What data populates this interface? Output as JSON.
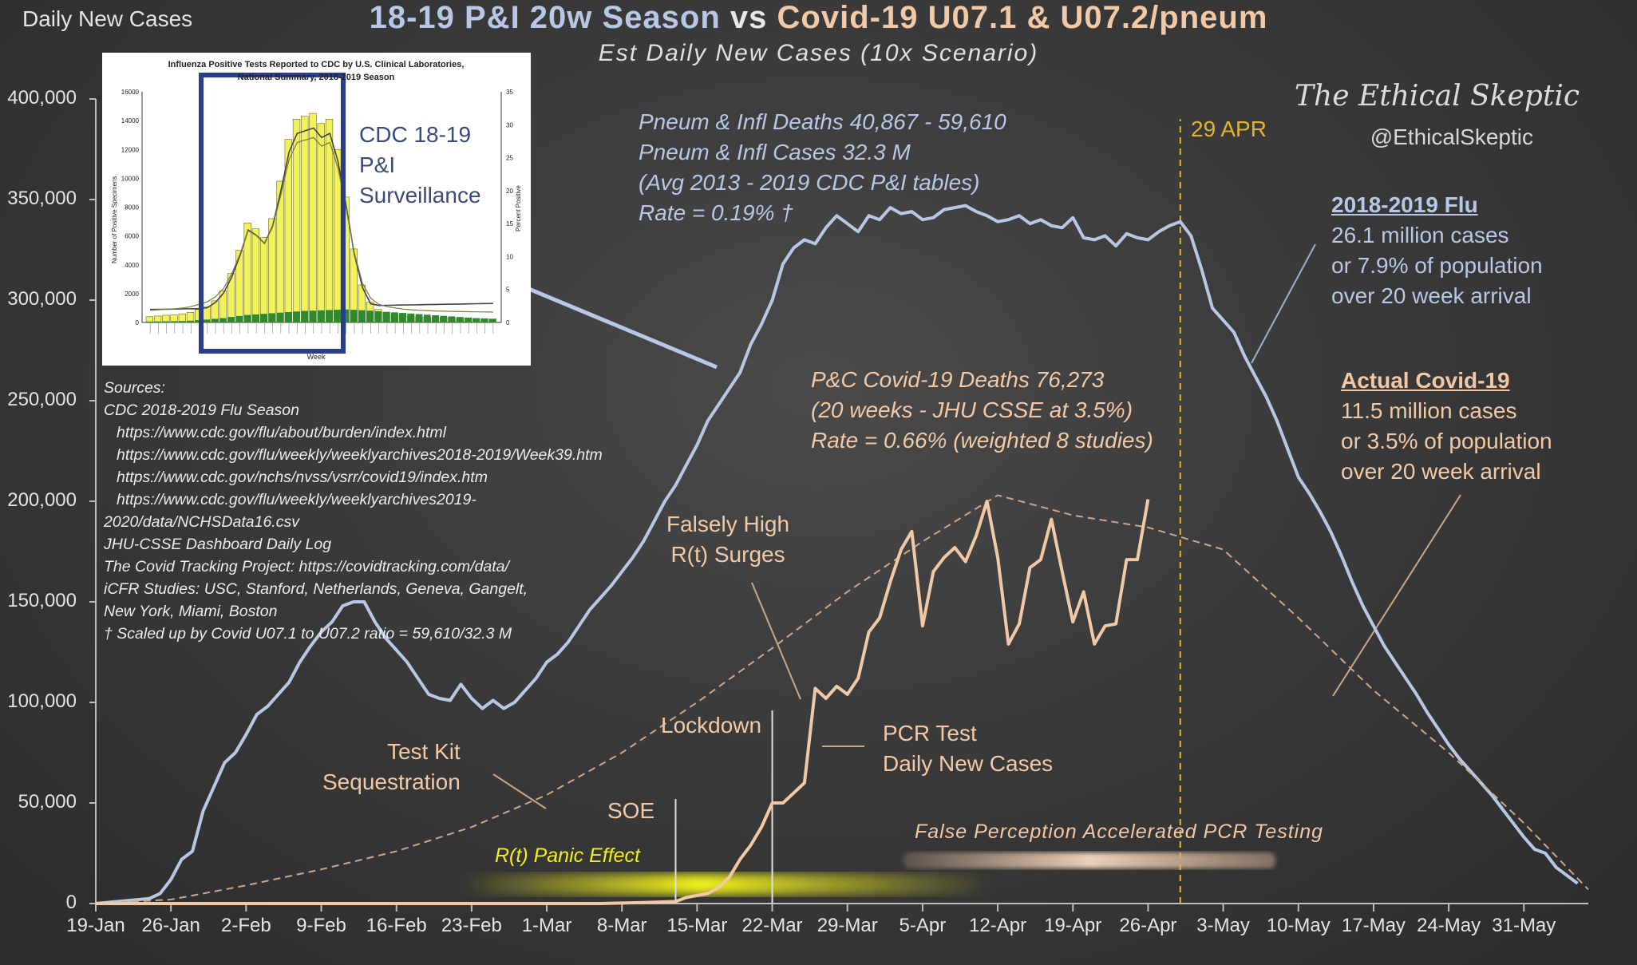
{
  "corner_label": "Daily New Cases",
  "title": {
    "part1": "18-19 P&I 20w Season",
    "vs": "vs",
    "part2": "Covid-19  U07.1 & U07.2/pneum"
  },
  "subtitle": "Est Daily New Cases (10x Scenario)",
  "brand": "The Ethical Skeptic",
  "handle": "@EthicalSkeptic",
  "colors": {
    "flu_line": "#b8c8e4",
    "covid_line": "#f2c9a6",
    "covid_estimate_dashed": "#c9a889",
    "date_marker": "#e2b42e",
    "panic_band": "#f0f01a",
    "inset_frame": "#2b3e8c"
  },
  "flu_stats": [
    "Pneum & Infl Deaths  40,867 - 59,610",
    "Pneum & Infl Cases  32.3 M",
    "(Avg 2013 - 2019 CDC P&I tables)",
    "Rate = 0.19% †"
  ],
  "covid_stats": [
    "P&C Covid-19 Deaths  76,273",
    "(20 weeks - JHU CSSE at 3.5%)",
    "Rate = 0.66% (weighted 8 studies)"
  ],
  "flu_box": {
    "heading": "2018-2019  Flu",
    "lines": [
      "26.1 million cases",
      "or 7.9% of population",
      "over 20 week arrival"
    ]
  },
  "covid_box": {
    "heading": "Actual Covid-19",
    "lines": [
      "11.5 million cases",
      "or 3.5% of population",
      "over 20 week arrival"
    ]
  },
  "sources": [
    "Sources:",
    "CDC 2018-2019 Flu Season",
    "https://www.cdc.gov/flu/about/burden/index.html",
    "https://www.cdc.gov/flu/weekly/weeklyarchives2018-2019/Week39.htm",
    "https://www.cdc.gov/nchs/nvss/vsrr/covid19/index.htm",
    "https://www.cdc.gov/flu/weekly/weeklyarchives2019-",
    "2020/data/NCHSData16.csv",
    "JHU-CSSE Dashboard Daily Log",
    "The Covid Tracking Project: https://covidtracking.com/data/",
    "iCFR Studies: USC, Stanford, Netherlands, Geneva, Gangelt,",
    "New York, Miami, Boston",
    "† Scaled up by Covid U07.1 to U07.2 ratio = 59,610/32.3 M"
  ],
  "annotations": {
    "falsely_high": [
      "Falsely High",
      "R(t) Surges"
    ],
    "test_kit": [
      "Test Kit",
      "Sequestration"
    ],
    "lockdown": "Lockdown",
    "soe": "SOE",
    "pcr": [
      "PCR Test",
      "Daily New Cases"
    ],
    "panic": "R(t) Panic Effect",
    "false_perception": "False Perception Accelerated  PCR Testing",
    "date_marker": "29 APR"
  },
  "inset": {
    "title_lines": [
      "Influenza Positive Tests Reported to CDC by U.S. Clinical Laboratories,",
      "National Summary, 2018-2019 Season"
    ],
    "y_left_label": "Number of Positive Specimens",
    "y_right_label": "Percent Positive",
    "x_label": "Week",
    "y_left_ticks": [
      "16000",
      "14000",
      "12000",
      "10000",
      "8000",
      "6000",
      "4000",
      "2000",
      "0"
    ],
    "y_right_ticks": [
      "35",
      "30",
      "25",
      "20",
      "15",
      "10",
      "5",
      "0"
    ],
    "callout": [
      "CDC 18-19",
      "P&I",
      "Surveillance"
    ],
    "bars_yellow": [
      400,
      450,
      500,
      520,
      600,
      700,
      900,
      1100,
      1500,
      2200,
      3400,
      5000,
      6900,
      6500,
      5900,
      7200,
      9800,
      12700,
      14100,
      14300,
      14500,
      13800,
      14100,
      12000,
      8700,
      5100,
      2600,
      1400,
      900,
      700,
      600,
      500,
      450,
      400,
      380,
      350,
      330,
      320,
      300,
      290,
      280,
      270,
      260
    ],
    "bars_green": [
      60,
      70,
      80,
      90,
      100,
      120,
      160,
      200,
      250,
      300,
      380,
      450,
      520,
      560,
      600,
      640,
      680,
      720,
      760,
      800,
      820,
      840,
      860,
      880,
      900,
      880,
      850,
      820,
      780,
      740,
      700,
      660,
      620,
      580,
      540,
      500,
      460,
      420,
      380,
      340,
      300,
      260,
      220
    ]
  },
  "chart_data": {
    "type": "line",
    "title": "18-19 P&I 20w Season vs Covid-19  U07.1 & U07.2/pneum",
    "subtitle": "Est Daily New Cases (10x Scenario)",
    "ylabel": "Daily New Cases",
    "ylim": [
      0,
      400000
    ],
    "yticks": [
      0,
      50000,
      100000,
      150000,
      200000,
      250000,
      300000,
      350000,
      400000
    ],
    "ytick_labels": [
      "0",
      "50,000",
      "100,000",
      "150,000",
      "200,000",
      "250,000",
      "300,000",
      "350,000",
      "400,000"
    ],
    "xlim": [
      "2020-01-19",
      "2020-06-06"
    ],
    "xtick_labels": [
      "19-Jan",
      "26-Jan",
      "2-Feb",
      "9-Feb",
      "16-Feb",
      "23-Feb",
      "1-Mar",
      "8-Mar",
      "15-Mar",
      "22-Mar",
      "29-Mar",
      "5-Apr",
      "12-Apr",
      "19-Apr",
      "26-Apr",
      "3-May",
      "10-May",
      "17-May",
      "24-May",
      "31-May"
    ],
    "grid": false,
    "markers": [
      {
        "label": "SOE",
        "date": "2020-03-13",
        "to_value": 52000
      },
      {
        "label": "Lockdown",
        "date": "2020-03-22",
        "to_value": 96000
      },
      {
        "label": "29 APR",
        "date": "2020-04-29",
        "to_value": 390000
      }
    ],
    "series": [
      {
        "name": "18-19 P&I 20w Season",
        "style": "solid",
        "points": [
          [
            "2020-01-19",
            0
          ],
          [
            "2020-01-20",
            500
          ],
          [
            "2020-01-21",
            1000
          ],
          [
            "2020-01-22",
            1500
          ],
          [
            "2020-01-23",
            2000
          ],
          [
            "2020-01-24",
            2500
          ],
          [
            "2020-01-25",
            5000
          ],
          [
            "2020-01-26",
            12000
          ],
          [
            "2020-01-27",
            22000
          ],
          [
            "2020-01-28",
            26000
          ],
          [
            "2020-01-29",
            46000
          ],
          [
            "2020-01-30",
            58000
          ],
          [
            "2020-01-31",
            70000
          ],
          [
            "2020-02-01",
            75000
          ],
          [
            "2020-02-02",
            84000
          ],
          [
            "2020-02-03",
            94000
          ],
          [
            "2020-02-04",
            98000
          ],
          [
            "2020-02-05",
            104000
          ],
          [
            "2020-02-06",
            110000
          ],
          [
            "2020-02-07",
            120000
          ],
          [
            "2020-02-08",
            128000
          ],
          [
            "2020-02-09",
            135000
          ],
          [
            "2020-02-10",
            140000
          ],
          [
            "2020-02-11",
            148000
          ],
          [
            "2020-02-12",
            150000
          ],
          [
            "2020-02-13",
            150000
          ],
          [
            "2020-02-14",
            140000
          ],
          [
            "2020-02-15",
            132000
          ],
          [
            "2020-02-16",
            126000
          ],
          [
            "2020-02-17",
            120000
          ],
          [
            "2020-02-18",
            112000
          ],
          [
            "2020-02-19",
            104000
          ],
          [
            "2020-02-20",
            102000
          ],
          [
            "2020-02-21",
            101000
          ],
          [
            "2020-02-22",
            109000
          ],
          [
            "2020-02-23",
            102000
          ],
          [
            "2020-02-24",
            97000
          ],
          [
            "2020-02-25",
            101000
          ],
          [
            "2020-02-26",
            97000
          ],
          [
            "2020-02-27",
            100000
          ],
          [
            "2020-02-28",
            106000
          ],
          [
            "2020-02-29",
            112000
          ],
          [
            "2020-03-01",
            120000
          ],
          [
            "2020-03-02",
            124000
          ],
          [
            "2020-03-03",
            130000
          ],
          [
            "2020-03-04",
            138000
          ],
          [
            "2020-03-05",
            146000
          ],
          [
            "2020-03-06",
            152000
          ],
          [
            "2020-03-07",
            158000
          ],
          [
            "2020-03-08",
            165000
          ],
          [
            "2020-03-09",
            172000
          ],
          [
            "2020-03-10",
            180000
          ],
          [
            "2020-03-11",
            190000
          ],
          [
            "2020-03-12",
            200000
          ],
          [
            "2020-03-13",
            208000
          ],
          [
            "2020-03-14",
            218000
          ],
          [
            "2020-03-15",
            228000
          ],
          [
            "2020-03-16",
            240000
          ],
          [
            "2020-03-17",
            248000
          ],
          [
            "2020-03-18",
            256000
          ],
          [
            "2020-03-19",
            264000
          ],
          [
            "2020-03-20",
            278000
          ],
          [
            "2020-03-21",
            288000
          ],
          [
            "2020-03-22",
            300000
          ],
          [
            "2020-03-23",
            318000
          ],
          [
            "2020-03-24",
            326000
          ],
          [
            "2020-03-25",
            330000
          ],
          [
            "2020-03-26",
            328000
          ],
          [
            "2020-03-27",
            336000
          ],
          [
            "2020-03-28",
            342000
          ],
          [
            "2020-03-29",
            338000
          ],
          [
            "2020-03-30",
            334000
          ],
          [
            "2020-03-31",
            342000
          ],
          [
            "2020-04-01",
            340000
          ],
          [
            "2020-04-02",
            346000
          ],
          [
            "2020-04-03",
            343000
          ],
          [
            "2020-04-04",
            344000
          ],
          [
            "2020-04-05",
            340000
          ],
          [
            "2020-04-06",
            341000
          ],
          [
            "2020-04-07",
            345000
          ],
          [
            "2020-04-08",
            346000
          ],
          [
            "2020-04-09",
            347000
          ],
          [
            "2020-04-10",
            344000
          ],
          [
            "2020-04-11",
            342000
          ],
          [
            "2020-04-12",
            339000
          ],
          [
            "2020-04-13",
            340000
          ],
          [
            "2020-04-14",
            342000
          ],
          [
            "2020-04-15",
            338000
          ],
          [
            "2020-04-16",
            340000
          ],
          [
            "2020-04-17",
            337000
          ],
          [
            "2020-04-18",
            336000
          ],
          [
            "2020-04-19",
            341000
          ],
          [
            "2020-04-20",
            331000
          ],
          [
            "2020-04-21",
            330000
          ],
          [
            "2020-04-22",
            332000
          ],
          [
            "2020-04-23",
            327000
          ],
          [
            "2020-04-24",
            333000
          ],
          [
            "2020-04-25",
            331000
          ],
          [
            "2020-04-26",
            330000
          ],
          [
            "2020-04-27",
            334000
          ],
          [
            "2020-04-28",
            337000
          ],
          [
            "2020-04-29",
            339000
          ],
          [
            "2020-04-30",
            332000
          ],
          [
            "2020-05-01",
            315000
          ],
          [
            "2020-05-02",
            296000
          ],
          [
            "2020-05-03",
            290000
          ],
          [
            "2020-05-04",
            284000
          ],
          [
            "2020-05-05",
            272000
          ],
          [
            "2020-05-06",
            262000
          ],
          [
            "2020-05-07",
            252000
          ],
          [
            "2020-05-08",
            240000
          ],
          [
            "2020-05-09",
            226000
          ],
          [
            "2020-05-10",
            212000
          ],
          [
            "2020-05-11",
            204000
          ],
          [
            "2020-05-12",
            195000
          ],
          [
            "2020-05-13",
            185000
          ],
          [
            "2020-05-14",
            173000
          ],
          [
            "2020-05-15",
            160000
          ],
          [
            "2020-05-16",
            148000
          ],
          [
            "2020-05-17",
            138000
          ],
          [
            "2020-05-18",
            128000
          ],
          [
            "2020-05-19",
            120000
          ],
          [
            "2020-05-20",
            112000
          ],
          [
            "2020-05-21",
            104000
          ],
          [
            "2020-05-22",
            95000
          ],
          [
            "2020-05-23",
            87000
          ],
          [
            "2020-05-24",
            79000
          ],
          [
            "2020-05-25",
            72000
          ],
          [
            "2020-05-26",
            66000
          ],
          [
            "2020-05-27",
            60000
          ],
          [
            "2020-05-28",
            54000
          ],
          [
            "2020-05-29",
            47000
          ],
          [
            "2020-05-30",
            40000
          ],
          [
            "2020-05-31",
            33000
          ],
          [
            "2020-06-01",
            27000
          ],
          [
            "2020-06-02",
            25000
          ],
          [
            "2020-06-03",
            18000
          ],
          [
            "2020-06-04",
            14000
          ],
          [
            "2020-06-05",
            10000
          ]
        ]
      },
      {
        "name": "Actual Covid-19",
        "style": "dashed",
        "points": [
          [
            "2020-01-19",
            0
          ],
          [
            "2020-01-26",
            2000
          ],
          [
            "2020-02-02",
            9000
          ],
          [
            "2020-02-09",
            17000
          ],
          [
            "2020-02-16",
            26000
          ],
          [
            "2020-02-23",
            38000
          ],
          [
            "2020-03-01",
            54000
          ],
          [
            "2020-03-08",
            75000
          ],
          [
            "2020-03-15",
            100000
          ],
          [
            "2020-03-22",
            127000
          ],
          [
            "2020-03-29",
            155000
          ],
          [
            "2020-04-05",
            180000
          ],
          [
            "2020-04-12",
            203000
          ],
          [
            "2020-04-19",
            193000
          ],
          [
            "2020-04-26",
            187000
          ],
          [
            "2020-05-03",
            176000
          ],
          [
            "2020-05-10",
            142000
          ],
          [
            "2020-05-17",
            106000
          ],
          [
            "2020-05-24",
            75000
          ],
          [
            "2020-05-31",
            40000
          ],
          [
            "2020-06-06",
            7000
          ]
        ]
      },
      {
        "name": "PCR Test Daily New Cases",
        "style": "solid",
        "points": [
          [
            "2020-01-19",
            0
          ],
          [
            "2020-03-06",
            0
          ],
          [
            "2020-03-10",
            500
          ],
          [
            "2020-03-13",
            1000
          ],
          [
            "2020-03-14",
            3000
          ],
          [
            "2020-03-15",
            4000
          ],
          [
            "2020-03-16",
            5000
          ],
          [
            "2020-03-17",
            8000
          ],
          [
            "2020-03-18",
            13000
          ],
          [
            "2020-03-19",
            22000
          ],
          [
            "2020-03-20",
            29000
          ],
          [
            "2020-03-21",
            38000
          ],
          [
            "2020-03-22",
            50000
          ],
          [
            "2020-03-23",
            50000
          ],
          [
            "2020-03-24",
            55000
          ],
          [
            "2020-03-25",
            60000
          ],
          [
            "2020-03-26",
            107000
          ],
          [
            "2020-03-27",
            102000
          ],
          [
            "2020-03-28",
            108000
          ],
          [
            "2020-03-29",
            104000
          ],
          [
            "2020-03-30",
            112000
          ],
          [
            "2020-03-31",
            135000
          ],
          [
            "2020-04-01",
            142000
          ],
          [
            "2020-04-02",
            160000
          ],
          [
            "2020-04-03",
            176000
          ],
          [
            "2020-04-04",
            185000
          ],
          [
            "2020-04-05",
            138000
          ],
          [
            "2020-04-06",
            165000
          ],
          [
            "2020-04-07",
            172000
          ],
          [
            "2020-04-08",
            177000
          ],
          [
            "2020-04-09",
            170000
          ],
          [
            "2020-04-10",
            183000
          ],
          [
            "2020-04-11",
            200000
          ],
          [
            "2020-04-12",
            172000
          ],
          [
            "2020-04-13",
            129000
          ],
          [
            "2020-04-14",
            139000
          ],
          [
            "2020-04-15",
            167000
          ],
          [
            "2020-04-16",
            171000
          ],
          [
            "2020-04-17",
            191000
          ],
          [
            "2020-04-18",
            165000
          ],
          [
            "2020-04-19",
            140000
          ],
          [
            "2020-04-20",
            155000
          ],
          [
            "2020-04-21",
            129000
          ],
          [
            "2020-04-22",
            138000
          ],
          [
            "2020-04-23",
            139000
          ],
          [
            "2020-04-24",
            171000
          ],
          [
            "2020-04-25",
            171000
          ],
          [
            "2020-04-26",
            201000
          ]
        ]
      }
    ]
  }
}
